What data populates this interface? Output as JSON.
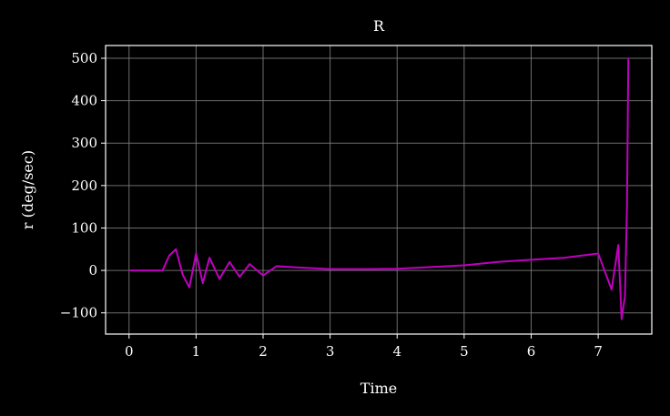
{
  "chart_data": {
    "type": "line",
    "title": "R",
    "xlabel": "Time",
    "ylabel": "r (deg/sec)",
    "xlim": [
      -0.35,
      7.8
    ],
    "ylim": [
      -150,
      530
    ],
    "xticks": [
      0,
      1,
      2,
      3,
      4,
      5,
      6,
      7
    ],
    "yticks": [
      -100,
      0,
      100,
      200,
      300,
      400,
      500
    ],
    "ytick_labels": [
      "−100",
      "0",
      "100",
      "200",
      "300",
      "400",
      "500"
    ],
    "grid": true,
    "background": "#000000",
    "colors": {
      "series": "#c000c0",
      "grid": "#808080",
      "axes": "#ffffff"
    },
    "series": [
      {
        "x": [
          0,
          0.5,
          0.6,
          0.7,
          0.8,
          0.9,
          1.0,
          1.1,
          1.2,
          1.35,
          1.5,
          1.65,
          1.8,
          2.0,
          2.2,
          2.5,
          3.0,
          3.5,
          4.0,
          4.5,
          5.0,
          5.5,
          6.0,
          6.5,
          7.0,
          7.2,
          7.3,
          7.35,
          7.4,
          7.43,
          7.45
        ],
        "y": [
          0,
          0,
          35,
          50,
          -10,
          -40,
          40,
          -30,
          30,
          -20,
          20,
          -15,
          15,
          -12,
          10,
          7,
          3,
          3,
          4,
          8,
          12,
          20,
          25,
          30,
          40,
          -45,
          60,
          -115,
          -60,
          150,
          500
        ]
      }
    ]
  }
}
